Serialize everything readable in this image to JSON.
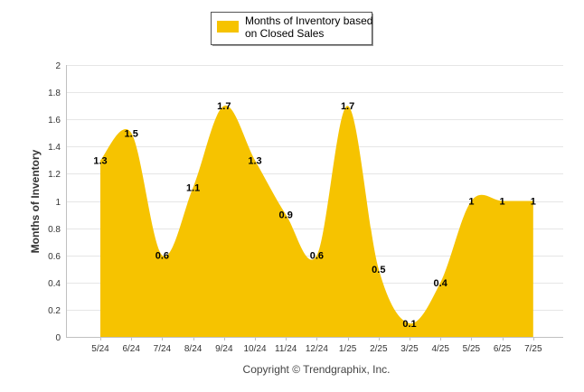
{
  "chart_data": {
    "type": "area",
    "categories": [
      "5/24",
      "6/24",
      "7/24",
      "8/24",
      "9/24",
      "10/24",
      "11/24",
      "12/24",
      "1/25",
      "2/25",
      "3/25",
      "4/25",
      "5/25",
      "6/25",
      "7/25"
    ],
    "series": [
      {
        "name": "Months of Inventory based on Closed Sales",
        "values": [
          1.3,
          1.5,
          0.6,
          1.1,
          1.7,
          1.3,
          0.9,
          0.6,
          1.7,
          0.5,
          0.1,
          0.4,
          1,
          1,
          1
        ],
        "color": "#F6C300"
      }
    ],
    "data_labels": [
      "1.3",
      "1.5",
      "0.6",
      "1.1",
      "1.7",
      "1.3",
      "0.9",
      "0.6",
      "1.7",
      "0.5",
      "0.1",
      "0.4",
      "1",
      "1",
      "1"
    ],
    "ylabel": "Months of Inventory",
    "xlabel": "",
    "ylim": [
      0,
      2
    ],
    "yticks": [
      "0",
      "0.2",
      "0.4",
      "0.6",
      "0.8",
      "1",
      "1.2",
      "1.4",
      "1.6",
      "1.8",
      "2"
    ],
    "legend": {
      "lines": [
        "Months of Inventory based",
        "on Closed Sales"
      ],
      "position": "top-center"
    },
    "grid": true
  },
  "footer": "Copyright © Trendgraphix, Inc.",
  "colors": {
    "area": "#F6C300",
    "grid": "#E6E6E6",
    "axis": "#C0C0C0"
  }
}
